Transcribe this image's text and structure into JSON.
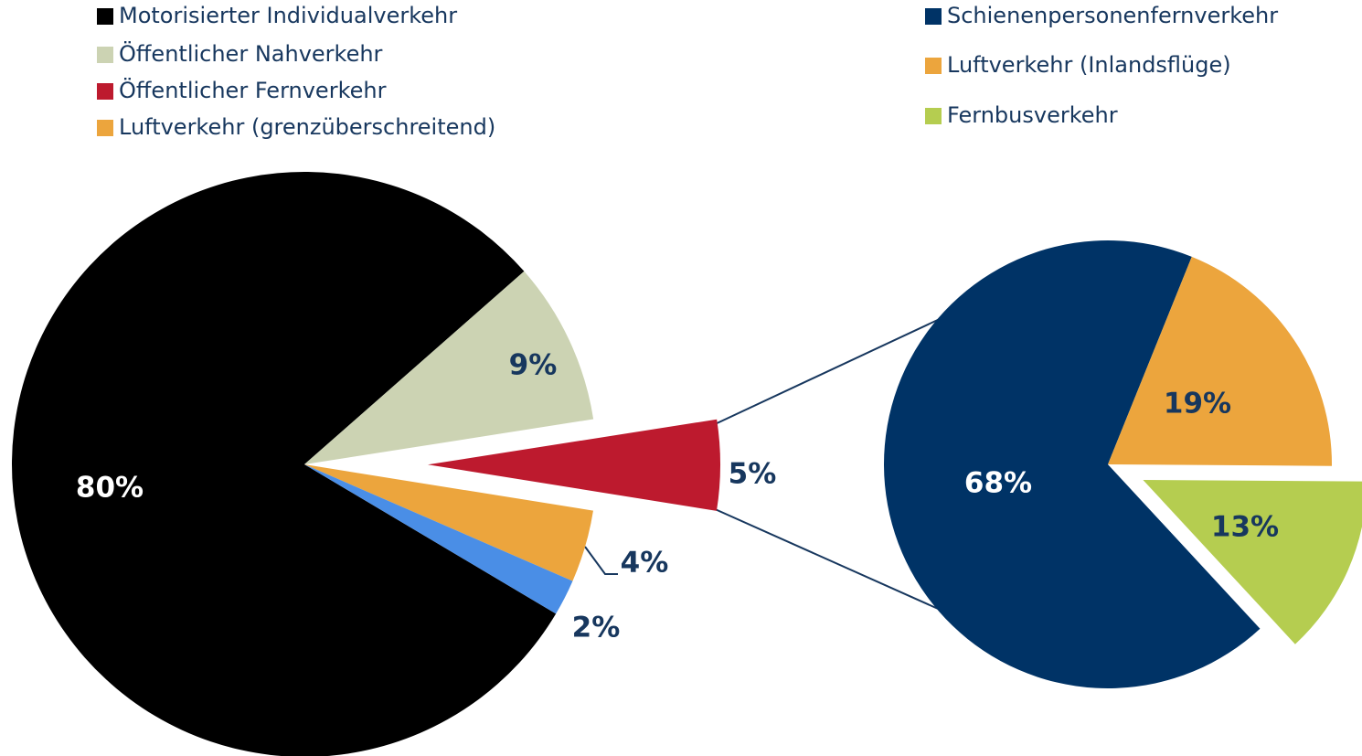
{
  "chart_data": [
    {
      "type": "pie",
      "categories": [
        "Motorisierter Individualverkehr",
        "Öffentlicher Nahverkehr",
        "Öffentlicher Fernverkehr",
        "Luftverkehr (grenzüberschreitend)",
        null
      ],
      "values": [
        80,
        9,
        5,
        4,
        2
      ],
      "value_labels": [
        "80%",
        "9%",
        "5%",
        "4%",
        "2%"
      ],
      "colors": [
        "#000000",
        "#ccd3b3",
        "#bd1a2e",
        "#eca53d",
        "#4a8ee6"
      ]
    },
    {
      "type": "pie",
      "categories": [
        "Schienenpersonenfernverkehr",
        "Luftverkehr (Inlandsflüge)",
        "Fernbusverkehr"
      ],
      "values": [
        68,
        19,
        13
      ],
      "value_labels": [
        "68%",
        "19%",
        "13%"
      ],
      "colors": [
        "#003366",
        "#eca53d",
        "#b5cd50"
      ]
    }
  ]
}
